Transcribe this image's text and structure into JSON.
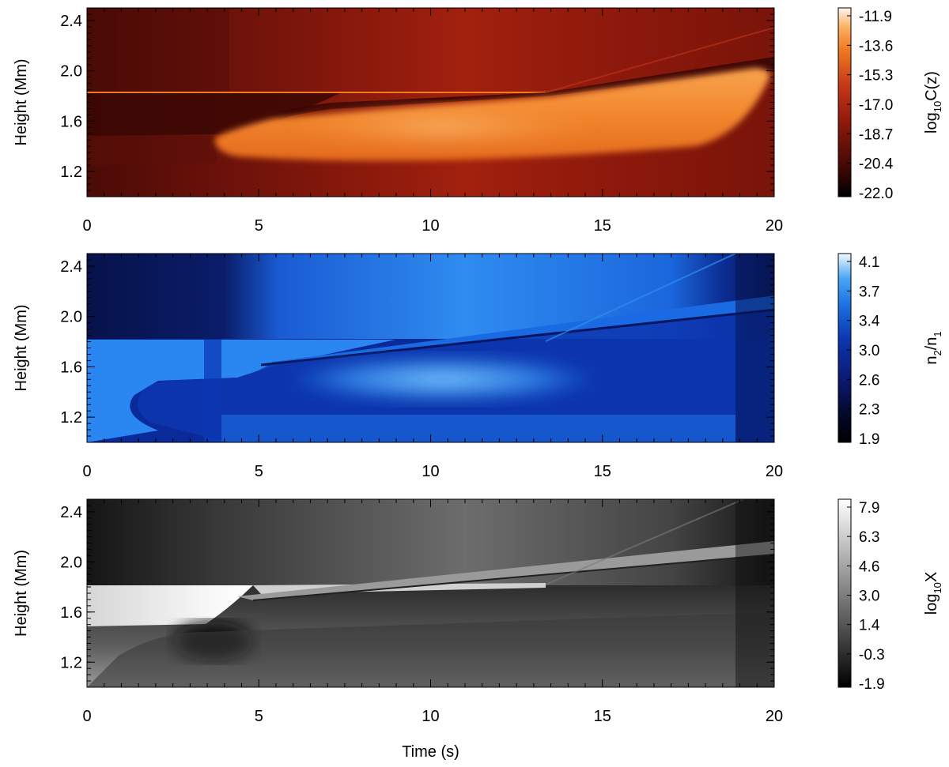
{
  "chart_data": [
    {
      "type": "heatmap",
      "colormap": "red-temperature",
      "colors": [
        "#000000",
        "#4a0906",
        "#8a170c",
        "#c33516",
        "#f07a22",
        "#fcb064",
        "#fff6ee"
      ],
      "ylabel": "Height (Mm)",
      "xlabel": "",
      "xlim": [
        0,
        20
      ],
      "ylim": [
        1.0,
        2.5
      ],
      "x_ticks": [
        "0",
        "5",
        "10",
        "15",
        "20"
      ],
      "y_ticks": [
        "1.2",
        "1.6",
        "2.0",
        "2.4"
      ],
      "colorbar": {
        "label_parts": [
          "log",
          "10",
          "C(z)"
        ],
        "ticks": [
          "-11.9",
          "-13.6",
          "-15.3",
          "-17.0",
          "-18.7",
          "-20.4",
          "-22.0"
        ],
        "range": [
          -22.0,
          -11.9
        ]
      }
    },
    {
      "type": "heatmap",
      "colormap": "blue",
      "colors": [
        "#000000",
        "#04082a",
        "#0b1b78",
        "#0d36b0",
        "#1b6fe0",
        "#4aa6f5",
        "#f2faff"
      ],
      "ylabel": "Height (Mm)",
      "xlabel": "",
      "xlim": [
        0,
        20
      ],
      "ylim": [
        1.0,
        2.5
      ],
      "x_ticks": [
        "0",
        "5",
        "10",
        "15",
        "20"
      ],
      "y_ticks": [
        "1.2",
        "1.6",
        "2.0",
        "2.4"
      ],
      "colorbar": {
        "label_parts": [
          "n",
          "2",
          "/n",
          "1"
        ],
        "ticks": [
          "4.1",
          "3.7",
          "3.4",
          "3.0",
          "2.6",
          "2.3",
          "1.9"
        ],
        "range": [
          1.9,
          4.1
        ]
      }
    },
    {
      "type": "heatmap",
      "colormap": "gray",
      "colors": [
        "#000000",
        "#ffffff"
      ],
      "ylabel": "Height (Mm)",
      "xlabel": "Time (s)",
      "xlim": [
        0,
        20
      ],
      "ylim": [
        1.0,
        2.5
      ],
      "x_ticks": [
        "0",
        "5",
        "10",
        "15",
        "20"
      ],
      "y_ticks": [
        "1.2",
        "1.6",
        "2.0",
        "2.4"
      ],
      "colorbar": {
        "label_parts": [
          "log",
          "10",
          "X"
        ],
        "ticks": [
          "7.9",
          "6.3",
          "4.6",
          "3.0",
          "1.4",
          "-0.3",
          "-1.9"
        ],
        "range": [
          -1.9,
          7.9
        ]
      }
    }
  ]
}
